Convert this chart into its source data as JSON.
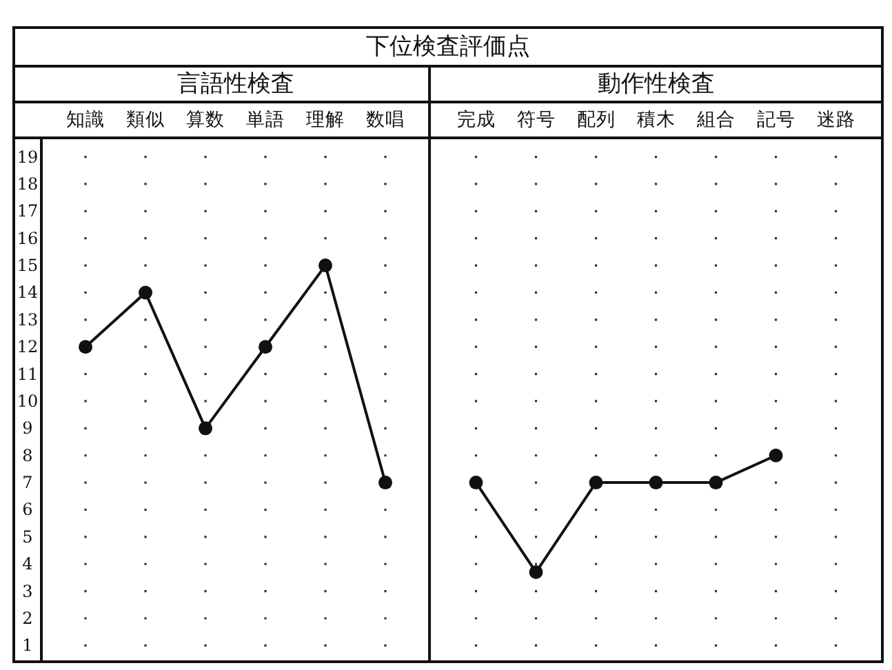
{
  "chart_data": [
    {
      "type": "line",
      "title": "下位検査評価点",
      "subtitle": "言語性検査",
      "categories": [
        "知識",
        "類似",
        "算数",
        "単語",
        "理解",
        "数唱"
      ],
      "values": [
        12,
        14,
        9,
        12,
        15,
        7
      ],
      "color": "#111111",
      "ylim": [
        0.4,
        19.7
      ],
      "yticks": [
        1,
        2,
        3,
        4,
        5,
        6,
        7,
        8,
        9,
        10,
        11,
        12,
        13,
        14,
        15,
        16,
        17,
        18,
        19
      ],
      "grid": true,
      "marker": "circle",
      "line_style": "solid"
    },
    {
      "type": "line",
      "subtitle": "動作性検査",
      "categories": [
        "完成",
        "符号",
        "配列",
        "積木",
        "組合",
        "記号",
        "迷路"
      ],
      "values": [
        7,
        3.7,
        7,
        7,
        7,
        8,
        null
      ],
      "color": "#111111",
      "ylim": [
        0.4,
        19.7
      ],
      "yticks": [
        1,
        2,
        3,
        4,
        5,
        6,
        7,
        8,
        9,
        10,
        11,
        12,
        13,
        14,
        15,
        16,
        17,
        18,
        19
      ],
      "grid": true,
      "marker": "circle",
      "line_style": "solid",
      "tick_labels": "x"
    }
  ]
}
